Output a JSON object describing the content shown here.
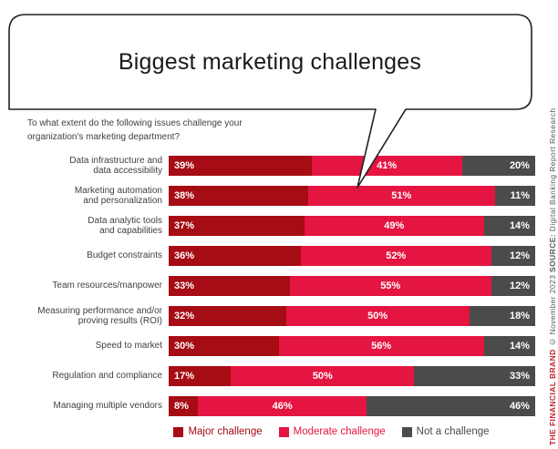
{
  "bubble": {
    "title": "Biggest marketing challenges"
  },
  "question": "To what extent do the following issues challenge your organization's marketing department?",
  "chart_data": {
    "type": "bar",
    "orientation": "horizontal",
    "stacked": true,
    "title": "Biggest marketing challenges",
    "xlim": [
      0,
      100
    ],
    "value_suffix": "%",
    "legend_position": "bottom",
    "categories": [
      "Data infrastructure and\ndata accessibility",
      "Marketing automation\nand personalization",
      "Data analytic tools\nand capabilities",
      "Budget constraints",
      "Team resources/manpower",
      "Measuring performance and/or\nproving results (ROI)",
      "Speed to market",
      "Regulation and compliance",
      "Managing multiple vendors"
    ],
    "series": [
      {
        "name": "Major challenge",
        "color": "#A60C13",
        "values": [
          39,
          38,
          37,
          36,
          33,
          32,
          30,
          17,
          8
        ]
      },
      {
        "name": "Moderate challenge",
        "color": "#E41540",
        "values": [
          41,
          51,
          49,
          52,
          55,
          50,
          56,
          50,
          46
        ]
      },
      {
        "name": "Not a challenge",
        "color": "#4B4B4B",
        "values": [
          20,
          11,
          14,
          12,
          12,
          18,
          14,
          33,
          46
        ]
      }
    ]
  },
  "sidebar": {
    "brand": "THE FINANCIAL BRAND",
    "copyright": " © November 2023 ",
    "source_label": "SOURCE:",
    "source_text": " Digital Banking Report Research"
  },
  "colors": {
    "bubble_stroke": "#231F20",
    "label_text": "#414042",
    "brand_red": "#BE1E2D"
  }
}
